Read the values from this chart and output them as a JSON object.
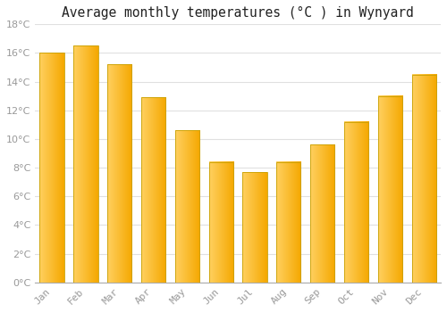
{
  "title": "Average monthly temperatures (°C ) in Wynyard",
  "months": [
    "Jan",
    "Feb",
    "Mar",
    "Apr",
    "May",
    "Jun",
    "Jul",
    "Aug",
    "Sep",
    "Oct",
    "Nov",
    "Dec"
  ],
  "values": [
    16.0,
    16.5,
    15.2,
    12.9,
    10.6,
    8.4,
    7.7,
    8.4,
    9.6,
    11.2,
    13.0,
    14.5
  ],
  "bar_color_left": "#FFD060",
  "bar_color_right": "#F5A800",
  "bar_edge_color": "#C8A000",
  "ylim": [
    0,
    18
  ],
  "yticks": [
    0,
    2,
    4,
    6,
    8,
    10,
    12,
    14,
    16,
    18
  ],
  "background_color": "#FFFFFF",
  "grid_color": "#E0E0E0",
  "tick_label_color": "#999999",
  "title_color": "#222222",
  "title_fontsize": 10.5
}
